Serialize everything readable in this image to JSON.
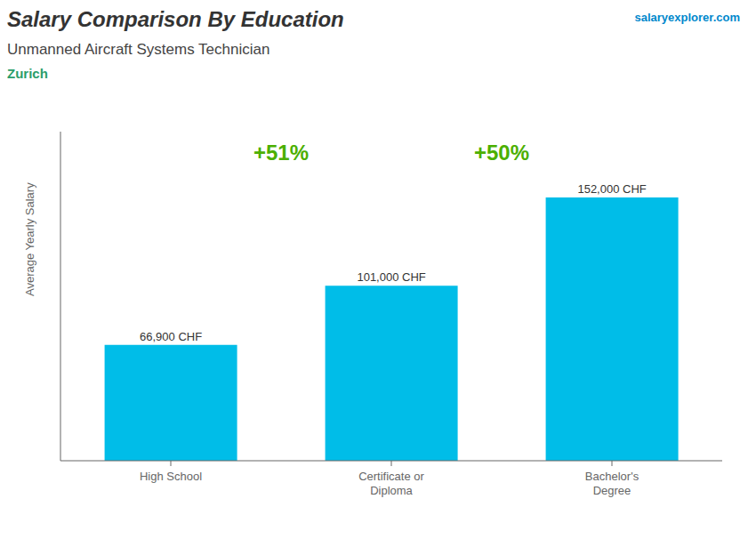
{
  "chart_data": {
    "type": "bar",
    "title": "Salary Comparison By Education",
    "subtitle": "Unmanned Aircraft Systems Technician",
    "annotations": [
      "Zurich",
      "salaryexplorer.com",
      "+51%",
      "+50%"
    ],
    "ylabel": "Average Yearly Salary",
    "categories": [
      "High School",
      "Certificate or\nDiploma",
      "Bachelor's\nDegree"
    ],
    "values": [
      66900,
      101000,
      152000
    ],
    "value_labels": [
      "66,900 CHF",
      "101,000 CHF",
      "152,000 CHF"
    ],
    "data_labels": true,
    "color": "#00bde8",
    "ylim": [
      0,
      190000
    ],
    "tick_labels": "x",
    "grid": false
  }
}
